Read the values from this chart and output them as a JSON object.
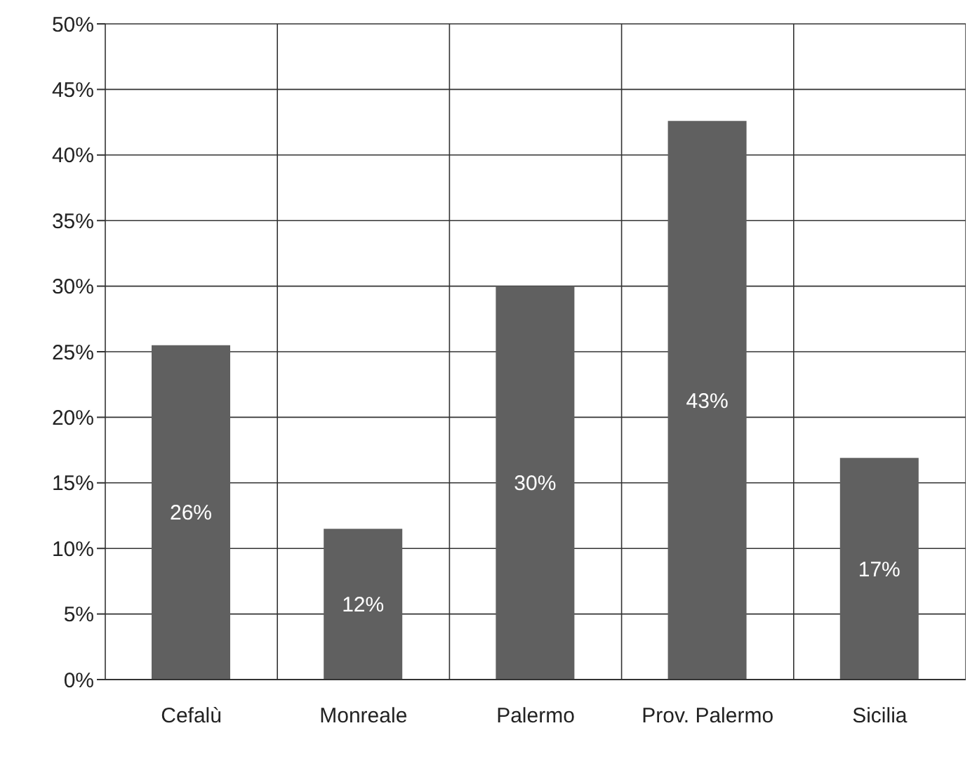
{
  "chart_data": {
    "type": "bar",
    "categories": [
      "Cefalù",
      "Monreale",
      "Palermo",
      "Prov. Palermo",
      "Sicilia"
    ],
    "values": [
      25.5,
      11.5,
      30,
      42.6,
      16.9
    ],
    "value_labels": [
      "26%",
      "12%",
      "30%",
      "43%",
      "17%"
    ],
    "color": "#606060",
    "ylim": [
      0,
      50
    ],
    "yticks": [
      {
        "value": 0,
        "label": "0%"
      },
      {
        "value": 5,
        "label": "5%"
      },
      {
        "value": 10,
        "label": "10%"
      },
      {
        "value": 15,
        "label": "15%"
      },
      {
        "value": 20,
        "label": "20%"
      },
      {
        "value": 25,
        "label": "25%"
      },
      {
        "value": 30,
        "label": "30%"
      },
      {
        "value": 35,
        "label": "35%"
      },
      {
        "value": 40,
        "label": "40%"
      },
      {
        "value": 45,
        "label": "45%"
      },
      {
        "value": 50,
        "label": "50%"
      }
    ],
    "grid": true
  }
}
